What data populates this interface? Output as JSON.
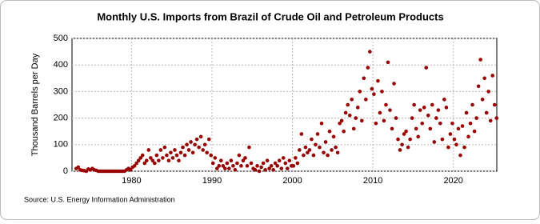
{
  "chart_data": {
    "type": "scatter",
    "title": "Monthly U.S. Imports from Brazil of Crude Oil and Petroleum Products",
    "y_label": "Thousand Barrels per Day",
    "source": "Source: U.S. Energy Information Administration",
    "color": "#990000",
    "grid": true,
    "xlim": [
      1972.6,
      2025.4
    ],
    "ylim": [
      0,
      500
    ],
    "xticks": [
      1980,
      1990,
      2000,
      2010,
      2020
    ],
    "yticks": [
      0,
      100,
      200,
      300,
      400,
      500
    ],
    "x": [
      1973.125,
      1973.375,
      1973.625,
      1973.875,
      1974.125,
      1974.375,
      1974.625,
      1974.875,
      1975.125,
      1975.375,
      1975.625,
      1975.875,
      1976.125,
      1976.375,
      1976.625,
      1976.875,
      1977.125,
      1977.375,
      1977.625,
      1977.875,
      1978.125,
      1978.375,
      1978.625,
      1978.875,
      1979.125,
      1979.375,
      1979.625,
      1979.875,
      1980.125,
      1980.375,
      1980.625,
      1980.875,
      1981.125,
      1981.375,
      1981.625,
      1981.875,
      1982.125,
      1982.375,
      1982.625,
      1982.875,
      1983.125,
      1983.375,
      1983.625,
      1983.875,
      1984.125,
      1984.375,
      1984.625,
      1984.875,
      1985.125,
      1985.375,
      1985.625,
      1985.875,
      1986.125,
      1986.375,
      1986.625,
      1986.875,
      1987.125,
      1987.375,
      1987.625,
      1987.875,
      1988.125,
      1988.375,
      1988.625,
      1988.875,
      1989.125,
      1989.375,
      1989.625,
      1989.875,
      1990.125,
      1990.375,
      1990.625,
      1990.875,
      1991.125,
      1991.375,
      1991.625,
      1991.875,
      1992.125,
      1992.375,
      1992.625,
      1992.875,
      1993.125,
      1993.375,
      1993.625,
      1993.875,
      1994.125,
      1994.375,
      1994.625,
      1994.875,
      1995.125,
      1995.375,
      1995.625,
      1995.875,
      1996.125,
      1996.375,
      1996.625,
      1996.875,
      1997.125,
      1997.375,
      1997.625,
      1997.875,
      1998.125,
      1998.375,
      1998.625,
      1998.875,
      1999.125,
      1999.375,
      1999.625,
      1999.875,
      2000.125,
      2000.375,
      2000.625,
      2000.875,
      2001.125,
      2001.375,
      2001.625,
      2001.875,
      2002.125,
      2002.375,
      2002.625,
      2002.875,
      2003.125,
      2003.375,
      2003.625,
      2003.875,
      2004.125,
      2004.375,
      2004.625,
      2004.875,
      2005.125,
      2005.375,
      2005.625,
      2005.875,
      2006.125,
      2006.375,
      2006.625,
      2006.875,
      2007.125,
      2007.375,
      2007.625,
      2007.875,
      2008.125,
      2008.375,
      2008.625,
      2008.875,
      2009.125,
      2009.375,
      2009.625,
      2009.875,
      2010.125,
      2010.375,
      2010.625,
      2010.875,
      2011.125,
      2011.375,
      2011.625,
      2011.875,
      2012.125,
      2012.375,
      2012.625,
      2012.875,
      2013.125,
      2013.375,
      2013.625,
      2013.875,
      2014.125,
      2014.375,
      2014.625,
      2014.875,
      2015.125,
      2015.375,
      2015.625,
      2015.875,
      2016.125,
      2016.375,
      2016.625,
      2016.875,
      2017.125,
      2017.375,
      2017.625,
      2017.875,
      2018.125,
      2018.375,
      2018.625,
      2018.875,
      2019.125,
      2019.375,
      2019.625,
      2019.875,
      2020.125,
      2020.375,
      2020.625,
      2020.875,
      2021.125,
      2021.375,
      2021.625,
      2021.875,
      2022.125,
      2022.375,
      2022.625,
      2022.875,
      2023.125,
      2023.375,
      2023.625,
      2023.875,
      2024.125,
      2024.375,
      2024.625,
      2024.875,
      2025.125,
      2025.375
    ],
    "values": [
      10,
      15,
      5,
      3,
      2,
      0,
      8,
      5,
      10,
      5,
      3,
      0,
      0,
      0,
      0,
      0,
      0,
      0,
      0,
      0,
      0,
      0,
      0,
      0,
      0,
      5,
      10,
      5,
      15,
      20,
      30,
      40,
      50,
      60,
      30,
      40,
      80,
      50,
      40,
      30,
      60,
      40,
      80,
      50,
      90,
      60,
      40,
      70,
      50,
      80,
      60,
      40,
      70,
      90,
      60,
      100,
      80,
      110,
      70,
      100,
      120,
      90,
      130,
      80,
      100,
      70,
      120,
      60,
      30,
      50,
      10,
      20,
      40,
      20,
      10,
      30,
      10,
      40,
      20,
      5,
      30,
      60,
      20,
      40,
      50,
      20,
      90,
      30,
      10,
      5,
      20,
      0,
      15,
      30,
      5,
      40,
      10,
      20,
      5,
      30,
      20,
      40,
      10,
      50,
      30,
      10,
      40,
      20,
      20,
      50,
      30,
      80,
      140,
      60,
      90,
      70,
      80,
      120,
      60,
      100,
      140,
      90,
      180,
      70,
      110,
      60,
      150,
      80,
      130,
      90,
      70,
      180,
      190,
      150,
      220,
      250,
      210,
      270,
      160,
      200,
      240,
      300,
      190,
      350,
      270,
      390,
      450,
      310,
      290,
      180,
      340,
      220,
      300,
      190,
      250,
      410,
      230,
      160,
      330,
      200,
      120,
      80,
      100,
      140,
      150,
      90,
      120,
      200,
      250,
      160,
      130,
      230,
      180,
      240,
      390,
      210,
      160,
      250,
      110,
      200,
      230,
      180,
      120,
      270,
      240,
      90,
      140,
      180,
      120,
      100,
      160,
      60,
      170,
      90,
      220,
      130,
      180,
      250,
      150,
      200,
      320,
      420,
      270,
      350,
      220,
      300,
      190,
      360,
      250,
      200
    ]
  }
}
